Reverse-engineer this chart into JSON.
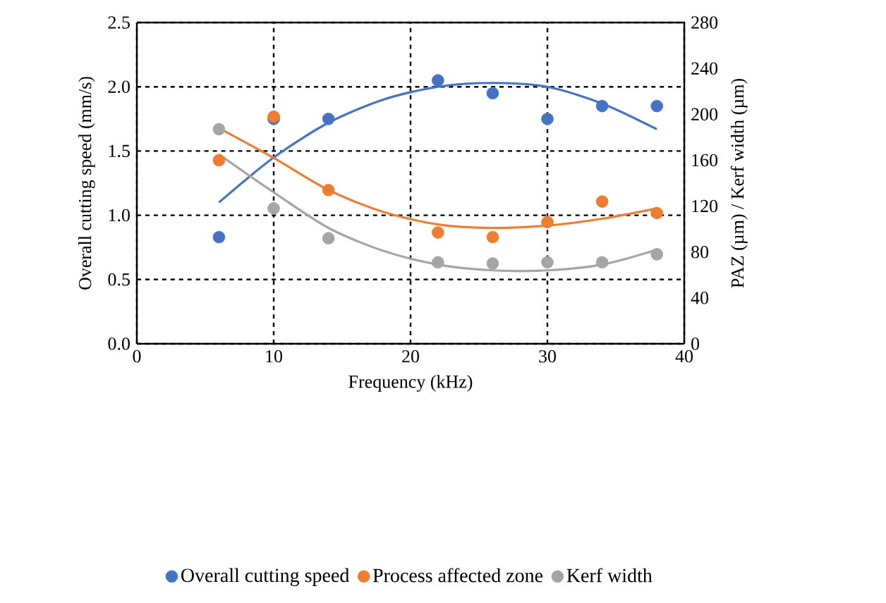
{
  "chart_data": {
    "type": "scatter",
    "xlabel": "Frequency (kHz)",
    "ylabel": "Overall cutting speed (mm/s)",
    "y2label": "PAZ (µm) / Kerf width (µm)",
    "x": [
      6,
      10,
      14,
      22,
      26,
      30,
      34,
      38
    ],
    "series": [
      {
        "name": "Overall cutting speed",
        "marker": "circle",
        "color": "#4472c4",
        "values": [
          0.83,
          1.75,
          1.75,
          2.05,
          1.95,
          1.75,
          1.85,
          1.85
        ]
      },
      {
        "name": "Process affected zone",
        "marker": "circle",
        "color": "#ed7d31",
        "axis": "y2",
        "values": [
          160,
          198,
          134,
          97,
          93,
          106,
          124,
          114
        ]
      },
      {
        "name": "Kerf width",
        "marker": "circle",
        "color": "#a5a5a5",
        "axis": "y2",
        "values": [
          187,
          118,
          92,
          71,
          70,
          71,
          71,
          78
        ]
      },
      {
        "type": "line",
        "marker": "none",
        "color": "#4472c4",
        "x": [
          6,
          10,
          14,
          18,
          22,
          26,
          30,
          34,
          38
        ],
        "values": [
          1.1,
          1.45,
          1.72,
          1.9,
          2.0,
          2.03,
          2.0,
          1.87,
          1.67
        ]
      },
      {
        "type": "line",
        "marker": "none",
        "color": "#ed7d31",
        "axis": "y2",
        "x": [
          6,
          10,
          14,
          18,
          22,
          26,
          30,
          34,
          38
        ],
        "values": [
          188,
          162,
          134,
          115,
          104,
          101,
          103,
          109,
          118
        ]
      },
      {
        "type": "line",
        "marker": "none",
        "color": "#a5a5a5",
        "axis": "y2",
        "x": [
          6,
          10,
          14,
          18,
          22,
          26,
          30,
          34,
          38
        ],
        "values": [
          165,
          132,
          101,
          81,
          69,
          64,
          64,
          69,
          82
        ]
      }
    ],
    "xlim": [
      0,
      40
    ],
    "xticks": [
      0,
      10,
      20,
      30,
      40
    ],
    "ylim": [
      0,
      2.5
    ],
    "yticks": [
      {
        "value": 0,
        "label": "0.0"
      },
      {
        "value": 0.5,
        "label": "0.5"
      },
      {
        "value": 1,
        "label": "1.0"
      },
      {
        "value": 1.5,
        "label": "1.5"
      },
      {
        "value": 2,
        "label": "2.0"
      },
      {
        "value": 2.5,
        "label": "2.5"
      }
    ],
    "y2lim": [
      0,
      280
    ],
    "y2ticks": [
      0,
      40,
      80,
      120,
      160,
      200,
      240,
      280
    ],
    "grid": true,
    "legend": "bottom"
  }
}
